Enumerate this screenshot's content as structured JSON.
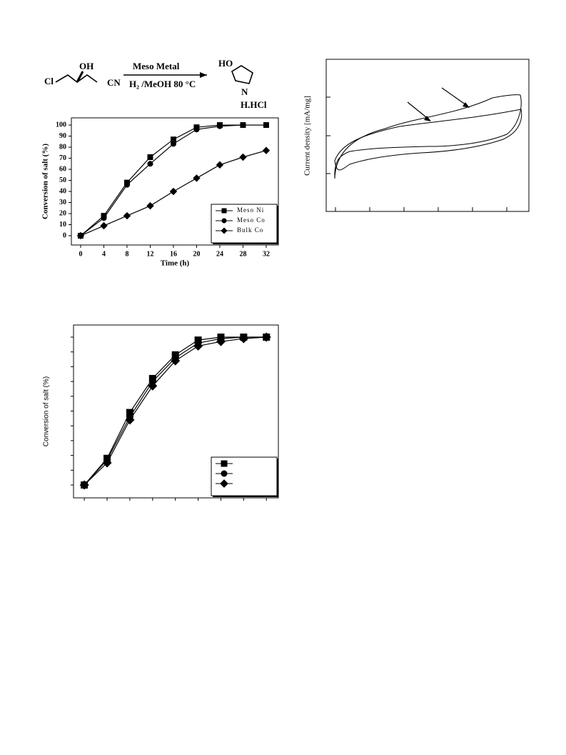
{
  "scheme": {
    "left_group": "Cl",
    "hydroxyl": "OH",
    "nitrile": "CN",
    "reagent": "Meso Metal",
    "conditions": "H₂ /MeOH 80 °C",
    "product_hydroxyl": "HO",
    "product_nitrogen": "N",
    "product_salt": "H.HCl"
  },
  "chart_data": [
    {
      "type": "line",
      "xlabel": "Time (h)",
      "ylabel": "Conversion of salt (%)",
      "x": [
        0,
        4,
        8,
        12,
        16,
        20,
        24,
        28,
        32
      ],
      "series": [
        {
          "name": "Meso Ni",
          "color": "#000000",
          "marker": "square",
          "values": [
            0,
            18,
            48,
            71,
            87,
            98,
            100,
            100,
            100
          ]
        },
        {
          "name": "Meso Co",
          "color": "#000000",
          "marker": "circle",
          "values": [
            0,
            16,
            46,
            65,
            83,
            96,
            99,
            100,
            100
          ]
        },
        {
          "name": "Bulk Co",
          "color": "#000000",
          "marker": "diamond",
          "values": [
            0,
            9,
            18,
            27,
            40,
            52,
            64,
            71,
            77
          ]
        }
      ],
      "xlim": [
        -1.6,
        34.1
      ],
      "ylim": [
        -8.4,
        106.5
      ],
      "xticks": [
        0,
        4,
        8,
        12,
        16,
        20,
        24,
        28,
        32
      ],
      "yticks": [
        0,
        10,
        20,
        30,
        40,
        50,
        60,
        70,
        80,
        90,
        100
      ],
      "tick_labels": true,
      "legend": "lower right"
    },
    {
      "type": "cyclic-voltammogram",
      "ylabel": "Current density [mA/mg]"
    },
    {
      "type": "line",
      "ylabel": "Conversion of salt (%)",
      "x": [
        0,
        4,
        8,
        12,
        16,
        20,
        24,
        28,
        32
      ],
      "series": [
        {
          "color": "#000000",
          "marker": "square",
          "values": [
            0,
            18,
            49,
            72,
            88,
            98,
            100,
            100,
            100
          ]
        },
        {
          "color": "#000000",
          "marker": "circle",
          "values": [
            0,
            17,
            46,
            70,
            86,
            96,
            99,
            100,
            100
          ]
        },
        {
          "color": "#000000",
          "marker": "diamond",
          "values": [
            0,
            15,
            44,
            67,
            84,
            94,
            97,
            99,
            100
          ]
        }
      ],
      "xlim": [
        -1.9,
        34.1
      ],
      "ylim": [
        -8.7,
        108.2
      ],
      "xticks": [
        0,
        4,
        8,
        12,
        16,
        20,
        24,
        28,
        32
      ],
      "yticks": [
        0,
        10,
        20,
        30,
        40,
        50,
        60,
        70,
        80,
        90,
        100
      ],
      "tick_labels": false,
      "legend": "lower right"
    }
  ]
}
